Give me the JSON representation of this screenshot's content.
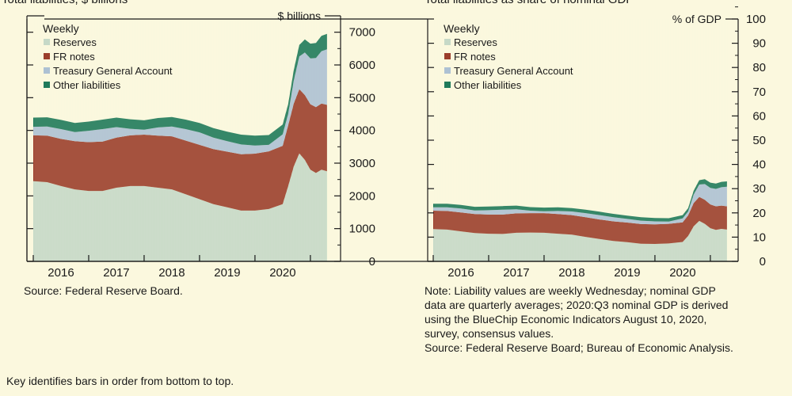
{
  "figure": {
    "footer": "Key identifies bars in order from bottom to top."
  },
  "colors": {
    "background": "#fbf8de",
    "reserves": "#c6d9c7",
    "fr_notes": "#9b3e2b",
    "tga": "#adc1d3",
    "other": "#1f7a5a",
    "axis": "#1a1a1a"
  },
  "chart_data": [
    {
      "type": "area",
      "stacked": true,
      "title": "Total liabilities, $ billions",
      "unit_label": "$ billions",
      "frequency_label": "Weekly",
      "legend": [
        "Reserves",
        "FR notes",
        "Treasury General Account",
        "Other liabilities"
      ],
      "legend_position": "top-left",
      "x_tick_labels": [
        "2016",
        "2017",
        "2018",
        "2019",
        "2020"
      ],
      "xlim": [
        2015.5,
        2020.83
      ],
      "ylim": [
        0,
        7500
      ],
      "y_ticks": [
        0,
        1000,
        2000,
        3000,
        4000,
        5000,
        6000,
        7000
      ],
      "y_tick_labels": [
        "0",
        "1000",
        "2000",
        "3000",
        "4000",
        "5000",
        "6000",
        "7000"
      ],
      "source": "Source: Federal Reserve Board.",
      "x": [
        2015.5,
        2015.75,
        2016.0,
        2016.25,
        2016.5,
        2016.75,
        2017.0,
        2017.25,
        2017.5,
        2017.75,
        2018.0,
        2018.25,
        2018.5,
        2018.75,
        2019.0,
        2019.25,
        2019.5,
        2019.75,
        2020.0,
        2020.1,
        2020.2,
        2020.3,
        2020.4,
        2020.5,
        2020.6,
        2020.7,
        2020.8
      ],
      "series": [
        {
          "name": "Reserves",
          "values": [
            2450,
            2420,
            2300,
            2200,
            2150,
            2150,
            2250,
            2300,
            2300,
            2250,
            2200,
            2050,
            1900,
            1750,
            1650,
            1550,
            1550,
            1600,
            1750,
            2300,
            2900,
            3300,
            3100,
            2800,
            2700,
            2800,
            2750
          ]
        },
        {
          "name": "FR notes",
          "values": [
            1400,
            1420,
            1440,
            1470,
            1490,
            1510,
            1530,
            1550,
            1570,
            1590,
            1620,
            1640,
            1660,
            1680,
            1700,
            1720,
            1740,
            1760,
            1780,
            1860,
            1920,
            1960,
            1980,
            2000,
            2010,
            2020,
            2030
          ]
        },
        {
          "name": "Treasury General Account",
          "values": [
            260,
            280,
            300,
            280,
            350,
            380,
            320,
            200,
            150,
            250,
            300,
            350,
            380,
            350,
            320,
            300,
            250,
            200,
            350,
            350,
            700,
            1000,
            1300,
            1400,
            1500,
            1600,
            1700
          ]
        },
        {
          "name": "Other liabilities",
          "values": [
            280,
            280,
            280,
            280,
            280,
            290,
            290,
            290,
            290,
            290,
            290,
            290,
            290,
            290,
            290,
            300,
            300,
            300,
            300,
            300,
            320,
            350,
            400,
            450,
            460,
            470,
            470
          ]
        }
      ]
    },
    {
      "type": "area",
      "stacked": true,
      "title": "Total liabilities as share of nominal GDP",
      "unit_label": "% of GDP",
      "frequency_label": "Weekly",
      "legend": [
        "Reserves",
        "FR notes",
        "Treasury General Account",
        "Other liabilities"
      ],
      "legend_position": "top-left",
      "x_tick_labels": [
        "2016",
        "2017",
        "2018",
        "2019",
        "2020"
      ],
      "xlim": [
        2015.5,
        2020.83
      ],
      "ylim": [
        0,
        100
      ],
      "y_ticks": [
        0,
        10,
        20,
        30,
        40,
        50,
        60,
        70,
        80,
        90,
        100
      ],
      "y_tick_labels": [
        "0",
        "10",
        "20",
        "30",
        "40",
        "50",
        "60",
        "70",
        "80",
        "90",
        "100"
      ],
      "notes": [
        "Note: Liability values are weekly Wednesday; nominal GDP",
        "data are quarterly averages; 2020:Q3 nominal GDP is derived",
        "using the BlueChip Economic Indicators  August 10, 2020,",
        "survey, consensus values.",
        "Source: Federal Reserve Board; Bureau of Economic Analysis."
      ],
      "x": [
        2015.5,
        2015.75,
        2016.0,
        2016.25,
        2016.5,
        2016.75,
        2017.0,
        2017.25,
        2017.5,
        2017.75,
        2018.0,
        2018.25,
        2018.5,
        2018.75,
        2019.0,
        2019.25,
        2019.5,
        2019.75,
        2020.0,
        2020.1,
        2020.2,
        2020.3,
        2020.4,
        2020.5,
        2020.6,
        2020.7,
        2020.8
      ],
      "series": [
        {
          "name": "Reserves",
          "values": [
            13.3,
            13.1,
            12.4,
            11.7,
            11.4,
            11.3,
            11.8,
            11.9,
            11.8,
            11.4,
            11.0,
            10.1,
            9.2,
            8.4,
            7.9,
            7.3,
            7.2,
            7.4,
            8.0,
            10.5,
            14.5,
            16.7,
            15.5,
            13.7,
            13.0,
            13.4,
            13.1
          ]
        },
        {
          "name": "FR notes",
          "values": [
            7.6,
            7.7,
            7.8,
            7.8,
            7.9,
            8.0,
            8.0,
            8.0,
            8.1,
            8.1,
            8.1,
            8.1,
            8.1,
            8.1,
            8.1,
            8.1,
            8.1,
            8.1,
            8.1,
            8.5,
            9.6,
            9.9,
            9.9,
            9.8,
            9.7,
            9.6,
            9.6
          ]
        },
        {
          "name": "Treasury General Account",
          "values": [
            1.4,
            1.5,
            1.6,
            1.5,
            1.8,
            2.0,
            1.7,
            1.0,
            0.8,
            1.3,
            1.5,
            1.7,
            1.8,
            1.7,
            1.5,
            1.4,
            1.2,
            0.9,
            1.6,
            1.6,
            3.5,
            5.1,
            6.5,
            6.8,
            7.2,
            7.6,
            8.1
          ]
        },
        {
          "name": "Other liabilities",
          "values": [
            1.5,
            1.5,
            1.5,
            1.5,
            1.5,
            1.5,
            1.5,
            1.5,
            1.5,
            1.5,
            1.4,
            1.4,
            1.4,
            1.4,
            1.4,
            1.4,
            1.4,
            1.4,
            1.4,
            1.4,
            1.6,
            1.8,
            2.0,
            2.2,
            2.2,
            2.2,
            2.2
          ]
        }
      ]
    }
  ]
}
